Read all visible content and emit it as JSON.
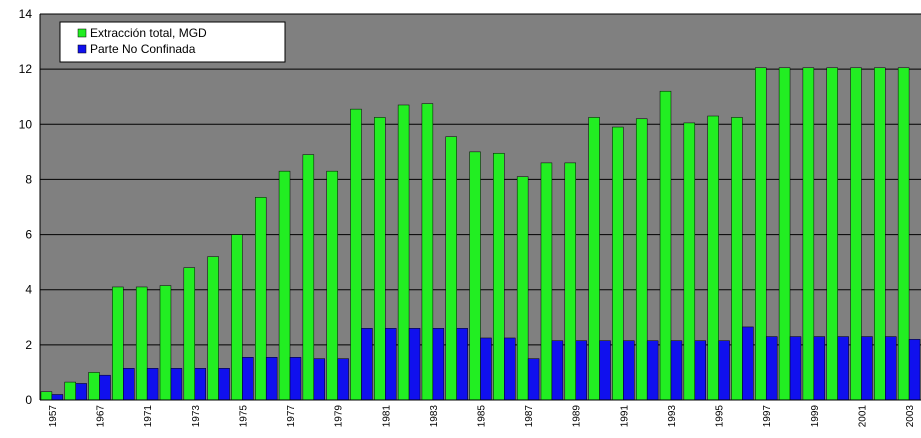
{
  "chart_data": {
    "type": "bar",
    "categories": [
      "1957",
      null,
      "1967",
      null,
      "1971",
      null,
      "1973",
      null,
      "1975",
      null,
      "1977",
      null,
      "1979",
      null,
      "1981",
      null,
      "1983",
      null,
      "1985",
      null,
      "1987",
      null,
      "1989",
      null,
      "1991",
      null,
      "1993",
      null,
      "1995",
      null,
      "1997",
      null,
      "1999",
      null,
      "2001",
      null,
      "2003"
    ],
    "series": [
      {
        "name": "Extracción total, MGD",
        "color": "#22ee22",
        "values": [
          0.3,
          0.65,
          1.0,
          4.1,
          4.1,
          4.15,
          4.8,
          5.2,
          6.0,
          7.35,
          8.3,
          8.9,
          8.3,
          10.55,
          10.25,
          10.7,
          10.75,
          9.55,
          9.0,
          8.95,
          8.1,
          8.6,
          8.6,
          10.25,
          9.9,
          10.2,
          11.2,
          10.05,
          10.3,
          10.25,
          12.05,
          12.05,
          12.05,
          12.05,
          12.05,
          12.05,
          12.05
        ]
      },
      {
        "name": "Parte No Confinada",
        "color": "#1010ee",
        "values": [
          0.2,
          0.6,
          0.9,
          1.15,
          1.15,
          1.15,
          1.15,
          1.15,
          1.55,
          1.55,
          1.55,
          1.5,
          1.5,
          2.6,
          2.6,
          2.6,
          2.6,
          2.6,
          2.25,
          2.25,
          1.5,
          2.15,
          2.15,
          2.15,
          2.15,
          2.15,
          2.15,
          2.15,
          2.15,
          2.65,
          2.3,
          2.3,
          2.3,
          2.3,
          2.3,
          2.3,
          2.2
        ]
      }
    ],
    "ylim": [
      0,
      14
    ],
    "yticks": [
      0,
      2,
      4,
      6,
      8,
      10,
      12,
      14
    ],
    "grid": true,
    "legend": "top-left",
    "background": "#808080"
  }
}
